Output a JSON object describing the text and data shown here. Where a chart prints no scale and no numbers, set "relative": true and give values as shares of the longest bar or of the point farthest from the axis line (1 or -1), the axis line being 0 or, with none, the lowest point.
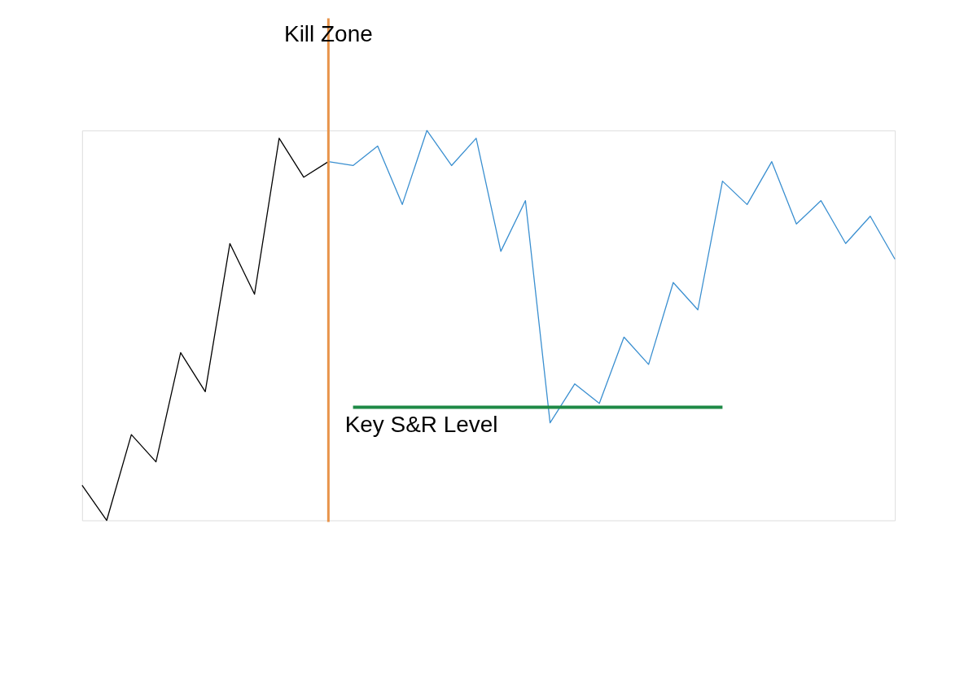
{
  "chart_data": {
    "type": "line",
    "relative": true,
    "grid": false,
    "legend": false,
    "marker": "none",
    "line_style": "solid",
    "categories": [
      null,
      null,
      null,
      null,
      null,
      null,
      null,
      null,
      null,
      null,
      null,
      null,
      null,
      null,
      null,
      null,
      null,
      null,
      null,
      null,
      null,
      null,
      null,
      null,
      null,
      null,
      null,
      null,
      null,
      null,
      null,
      null,
      null,
      null
    ],
    "series": [
      {
        "color": "#000000",
        "values": [
          0.09,
          0,
          0.22,
          0.15,
          0.43,
          0.33,
          0.71,
          0.58,
          0.98,
          0.88,
          0.92,
          null,
          null,
          null,
          null,
          null,
          null,
          null,
          null,
          null,
          null,
          null,
          null,
          null,
          null,
          null,
          null,
          null,
          null,
          null,
          null,
          null,
          null,
          null
        ]
      },
      {
        "color": "#3a8fd0",
        "values": [
          null,
          null,
          null,
          null,
          null,
          null,
          null,
          null,
          null,
          null,
          0.92,
          0.91,
          0.96,
          0.81,
          1,
          0.91,
          0.98,
          0.69,
          0.82,
          0.25,
          0.35,
          0.3,
          0.47,
          0.4,
          0.61,
          0.54,
          0.87,
          0.81,
          0.92,
          0.76,
          0.82,
          0.71,
          0.78,
          0.67
        ]
      },
      {
        "color": "#1e8a46",
        "values": [
          null,
          null,
          null,
          null,
          null,
          null,
          null,
          null,
          null,
          null,
          null,
          0.29,
          0.29,
          0.29,
          0.29,
          0.29,
          0.29,
          0.29,
          0.29,
          0.29,
          0.29,
          0.29,
          0.29,
          0.29,
          0.29,
          0.29,
          0.29,
          null,
          null,
          null,
          null,
          null,
          null,
          null
        ]
      }
    ],
    "annotations": [
      "Kill Zone",
      "Key S&R Level"
    ]
  }
}
